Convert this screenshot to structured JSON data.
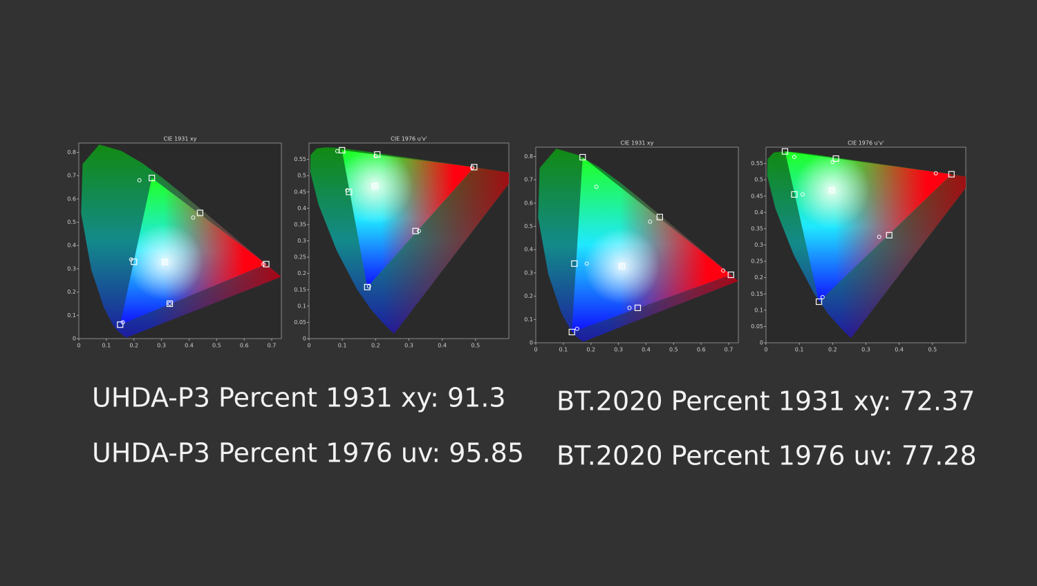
{
  "chart_data": [
    {
      "type": "scatter",
      "title": "CIE 1931 xy",
      "space": "xy",
      "xlim": [
        0,
        0.735
      ],
      "ylim": [
        0,
        0.84
      ],
      "xticks": [
        0,
        0.1,
        0.2,
        0.3,
        0.4,
        0.5,
        0.6,
        0.7
      ],
      "yticks": [
        0,
        0.1,
        0.2,
        0.3,
        0.4,
        0.5,
        0.6,
        0.7,
        0.8
      ],
      "series": [
        {
          "marker": "square",
          "color": "#ffffff",
          "x": [
            0.68,
            0.265,
            0.15,
            0.3127,
            0.2,
            0.33,
            0.44
          ],
          "y": [
            0.32,
            0.69,
            0.06,
            0.329,
            0.33,
            0.15,
            0.54
          ]
        },
        {
          "marker": "circle",
          "color": "#ffffff",
          "x": [
            0.67,
            0.22,
            0.16,
            0.31,
            0.19,
            0.33,
            0.415
          ],
          "y": [
            0.32,
            0.68,
            0.07,
            0.33,
            0.34,
            0.15,
            0.52
          ]
        }
      ]
    },
    {
      "type": "scatter",
      "title": "CIE 1976 u'v'",
      "space": "uv",
      "xlim": [
        0,
        0.6
      ],
      "ylim": [
        0,
        0.6
      ],
      "xticks": [
        0,
        0.1,
        0.2,
        0.3,
        0.4,
        0.5
      ],
      "yticks": [
        0,
        0.05,
        0.1,
        0.15,
        0.2,
        0.25,
        0.3,
        0.35,
        0.4,
        0.45,
        0.5,
        0.55
      ],
      "series": [
        {
          "marker": "square",
          "color": "#ffffff",
          "x": [
            0.496,
            0.099,
            0.175,
            0.198,
            0.12,
            0.32,
            0.205
          ],
          "y": [
            0.526,
            0.578,
            0.158,
            0.468,
            0.45,
            0.33,
            0.565
          ]
        },
        {
          "marker": "circle",
          "color": "#ffffff",
          "x": [
            0.49,
            0.085,
            0.18,
            0.196,
            0.115,
            0.33,
            0.2
          ],
          "y": [
            0.525,
            0.575,
            0.16,
            0.47,
            0.455,
            0.33,
            0.56
          ]
        }
      ]
    },
    {
      "type": "scatter",
      "title": "CIE 1931 xy",
      "space": "xy",
      "xlim": [
        0,
        0.735
      ],
      "ylim": [
        0,
        0.84
      ],
      "xticks": [
        0,
        0.1,
        0.2,
        0.3,
        0.4,
        0.5,
        0.6,
        0.7
      ],
      "yticks": [
        0,
        0.1,
        0.2,
        0.3,
        0.4,
        0.5,
        0.6,
        0.7,
        0.8
      ],
      "series": [
        {
          "marker": "square",
          "color": "#ffffff",
          "x": [
            0.708,
            0.17,
            0.131,
            0.3127,
            0.14,
            0.37,
            0.45
          ],
          "y": [
            0.292,
            0.797,
            0.046,
            0.329,
            0.34,
            0.15,
            0.54
          ]
        },
        {
          "marker": "circle",
          "color": "#ffffff",
          "x": [
            0.68,
            0.22,
            0.15,
            0.31,
            0.185,
            0.34,
            0.415
          ],
          "y": [
            0.31,
            0.67,
            0.06,
            0.33,
            0.34,
            0.15,
            0.52
          ]
        }
      ]
    },
    {
      "type": "scatter",
      "title": "CIE 1976 u'v'",
      "space": "uv",
      "xlim": [
        0,
        0.6
      ],
      "ylim": [
        0,
        0.6
      ],
      "xticks": [
        0,
        0.1,
        0.2,
        0.3,
        0.4,
        0.5
      ],
      "yticks": [
        0,
        0.05,
        0.1,
        0.15,
        0.2,
        0.25,
        0.3,
        0.35,
        0.4,
        0.45,
        0.5,
        0.55
      ],
      "series": [
        {
          "marker": "square",
          "color": "#ffffff",
          "x": [
            0.557,
            0.057,
            0.159,
            0.198,
            0.085,
            0.37,
            0.21
          ],
          "y": [
            0.517,
            0.587,
            0.126,
            0.468,
            0.455,
            0.33,
            0.565
          ]
        },
        {
          "marker": "circle",
          "color": "#ffffff",
          "x": [
            0.51,
            0.085,
            0.17,
            0.196,
            0.11,
            0.34,
            0.2
          ],
          "y": [
            0.52,
            0.57,
            0.14,
            0.47,
            0.455,
            0.325,
            0.555
          ]
        }
      ]
    }
  ],
  "captions": [
    "UHDA-P3 Percent 1931 xy: 91.3",
    "UHDA-P3 Percent 1976 uv: 95.85",
    "BT.2020 Percent 1931 xy: 72.37",
    "BT.2020 Percent 1976 uv: 77.28"
  ]
}
